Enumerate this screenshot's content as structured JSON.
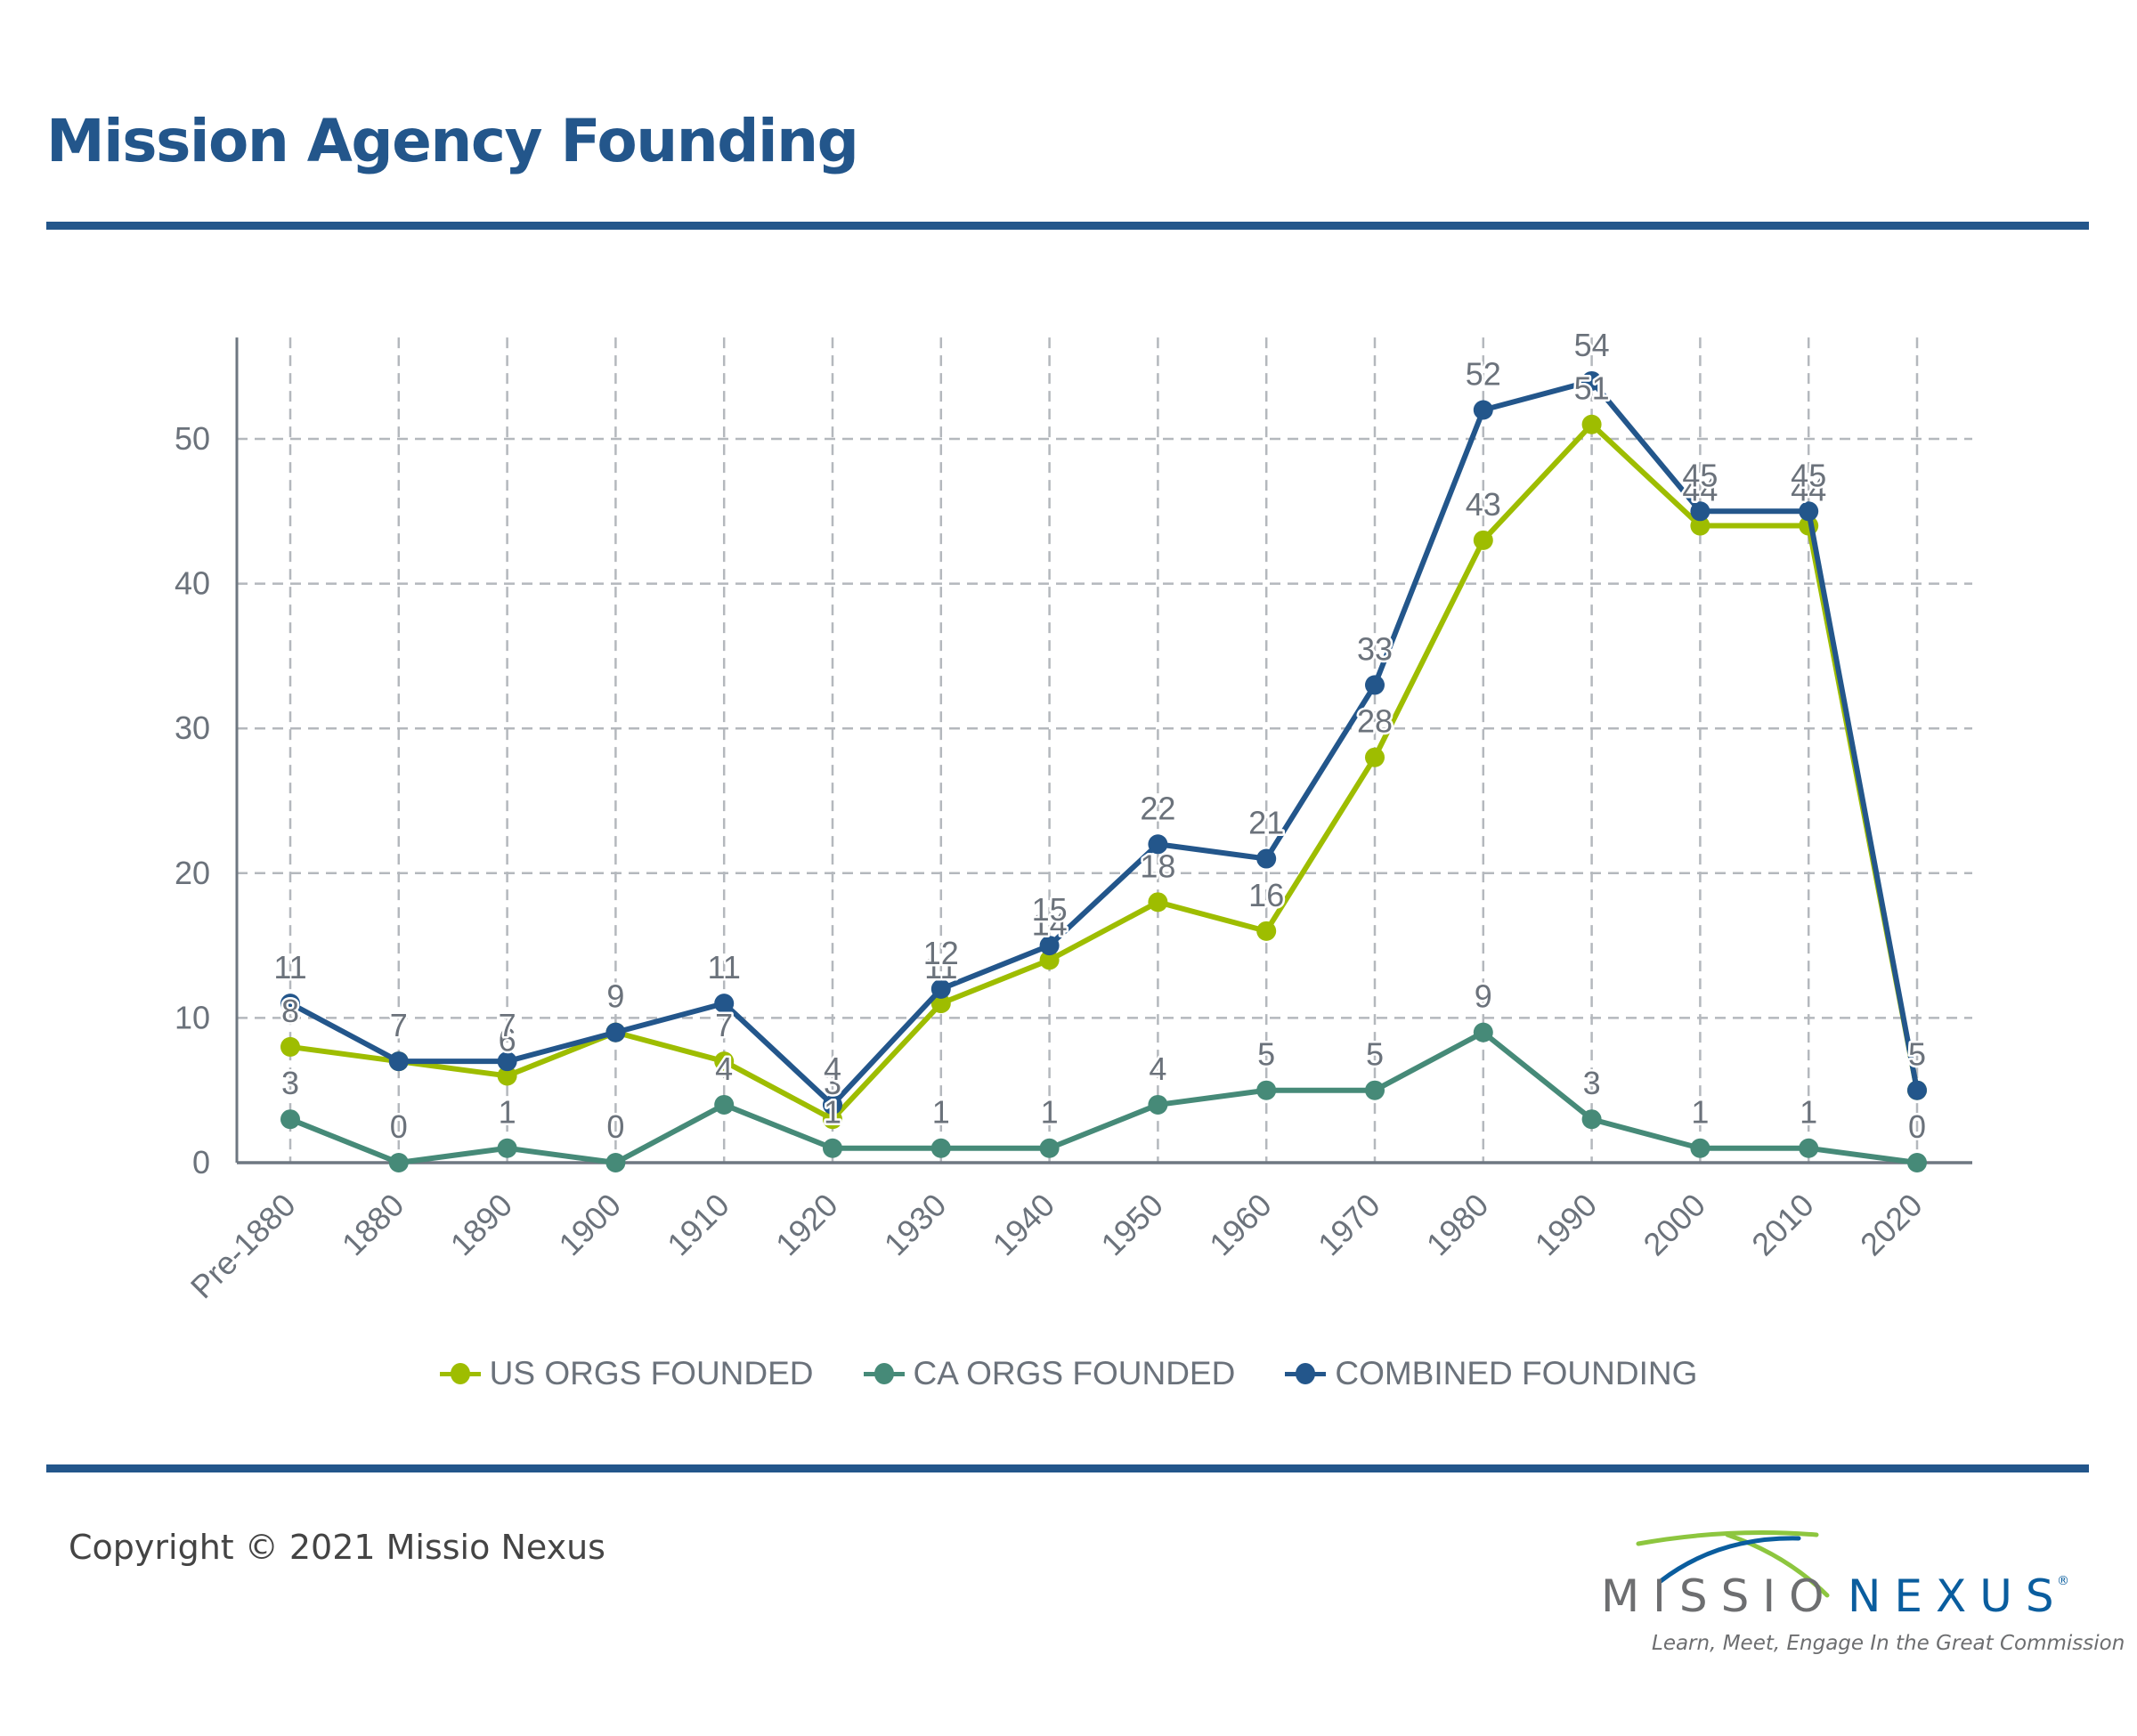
{
  "header": {
    "title": "Mission Agency Founding"
  },
  "footer": {
    "copyright": "Copyright © 2021 Missio Nexus",
    "logo": {
      "word1": "MISSIO",
      "word2": "NEXUS",
      "registered": "®",
      "tagline": "Learn, Meet, Engage In the Great Commission",
      "colors": {
        "gray": "#6d6e70",
        "blue": "#0a5d9e",
        "green": "#8dc63f"
      }
    }
  },
  "colors": {
    "brand": "#23568b",
    "axis": "#6e7781",
    "grid": "#b4b8bd",
    "text": "#6b727b"
  },
  "chart_data": {
    "type": "line",
    "title": "Mission Agency Founding",
    "xlabel": "",
    "ylabel": "",
    "categories": [
      "Pre-1880",
      "1880",
      "1890",
      "1900",
      "1910",
      "1920",
      "1930",
      "1940",
      "1950",
      "1960",
      "1970",
      "1980",
      "1990",
      "2000",
      "2010",
      "2020"
    ],
    "ylim": [
      0,
      57
    ],
    "yticks": [
      0,
      10,
      20,
      30,
      40,
      50
    ],
    "grid": true,
    "legend_position": "bottom",
    "data_labels": true,
    "series": [
      {
        "name": "US ORGS FOUNDED",
        "color": "#9ebd00",
        "values": [
          8,
          7,
          6,
          9,
          7,
          3,
          11,
          14,
          18,
          16,
          28,
          43,
          51,
          44,
          44,
          5
        ]
      },
      {
        "name": "CA ORGS FOUNDED",
        "color": "#468a78",
        "values": [
          3,
          0,
          1,
          0,
          4,
          1,
          1,
          1,
          4,
          5,
          5,
          9,
          3,
          1,
          1,
          0
        ]
      },
      {
        "name": "COMBINED FOUNDING",
        "color": "#23568b",
        "values": [
          11,
          7,
          7,
          9,
          11,
          4,
          12,
          15,
          22,
          21,
          33,
          52,
          54,
          45,
          45,
          5
        ]
      }
    ]
  }
}
